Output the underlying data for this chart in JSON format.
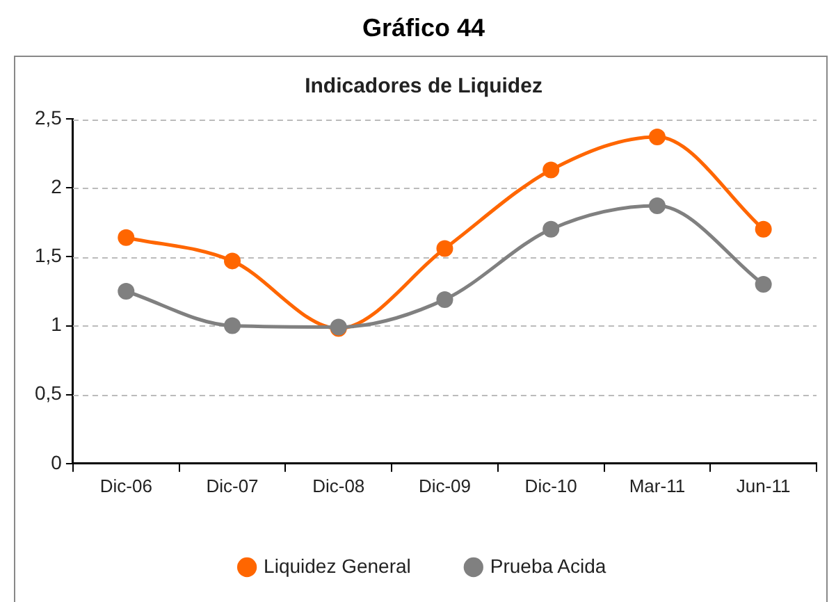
{
  "chart_data": {
    "type": "line",
    "title": "Gráfico 44",
    "subtitle": "Indicadores de Liquidez",
    "categories": [
      "Dic-06",
      "Dic-07",
      "Dic-08",
      "Dic-09",
      "Dic-10",
      "Mar-11",
      "Jun-11"
    ],
    "series": [
      {
        "name": "Liquidez General",
        "color": "#ff6600",
        "values": [
          1.64,
          1.47,
          0.98,
          1.56,
          2.13,
          2.37,
          1.7
        ]
      },
      {
        "name": "Prueba Acida",
        "color": "#808080",
        "values": [
          1.25,
          1.0,
          0.99,
          1.19,
          1.7,
          1.87,
          1.3
        ]
      }
    ],
    "ylim": [
      0,
      2.5
    ],
    "yticks": [
      0,
      {
        "value": 0.5,
        "label": "0,5"
      },
      1,
      {
        "value": 1.5,
        "label": "1,5"
      },
      2,
      {
        "value": 2.5,
        "label": "2,5"
      }
    ],
    "grid": "y",
    "legend": "bottom",
    "marker": "circle",
    "line_style": "solid"
  }
}
